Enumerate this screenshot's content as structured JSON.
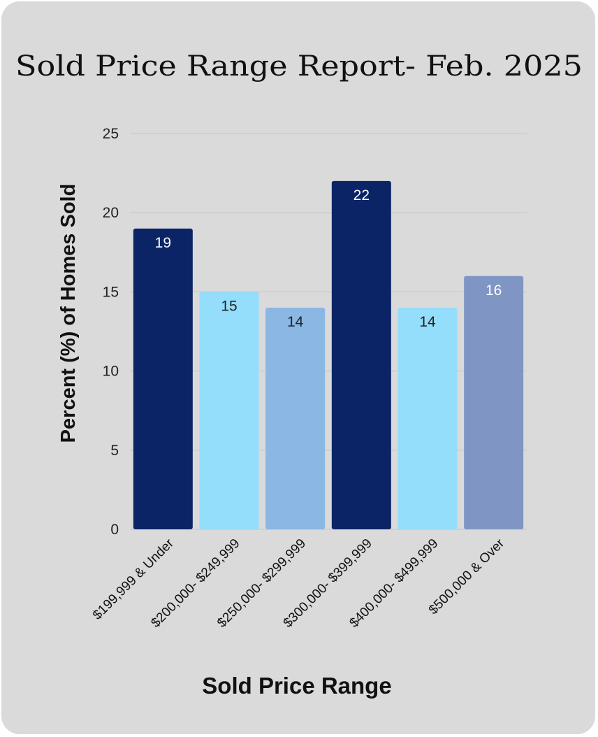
{
  "colors": {
    "background": "#dadada",
    "gridline": "#c4c4c4",
    "dark_navy": "#0b2466",
    "light_blue": "#94ddfb",
    "mid_blue": "#8ab7e4",
    "slate_blue": "#7f95c4"
  },
  "chart_data": {
    "type": "bar",
    "title": "Sold Price Range Report- Feb. 2025",
    "xlabel": "Sold Price Range",
    "ylabel": "Percent (%) of Homes Sold",
    "categories": [
      "$199,999 & Under",
      "$200,000- $249,999",
      "$250,000- $299,999",
      "$300,000- $399,999",
      "$400,000- $499,999",
      "$500,000 & Over"
    ],
    "values": [
      19,
      15,
      14,
      22,
      14,
      16
    ],
    "bar_colors": [
      "#0b2466",
      "#94ddfb",
      "#8ab7e4",
      "#0b2466",
      "#94ddfb",
      "#7f95c4"
    ],
    "label_colors": [
      "#ffffff",
      "#222222",
      "#222222",
      "#ffffff",
      "#222222",
      "#ffffff"
    ],
    "ylim": [
      0,
      25
    ],
    "yticks": [
      0,
      5,
      10,
      15,
      20,
      25
    ],
    "grid": true,
    "legend": "none"
  }
}
